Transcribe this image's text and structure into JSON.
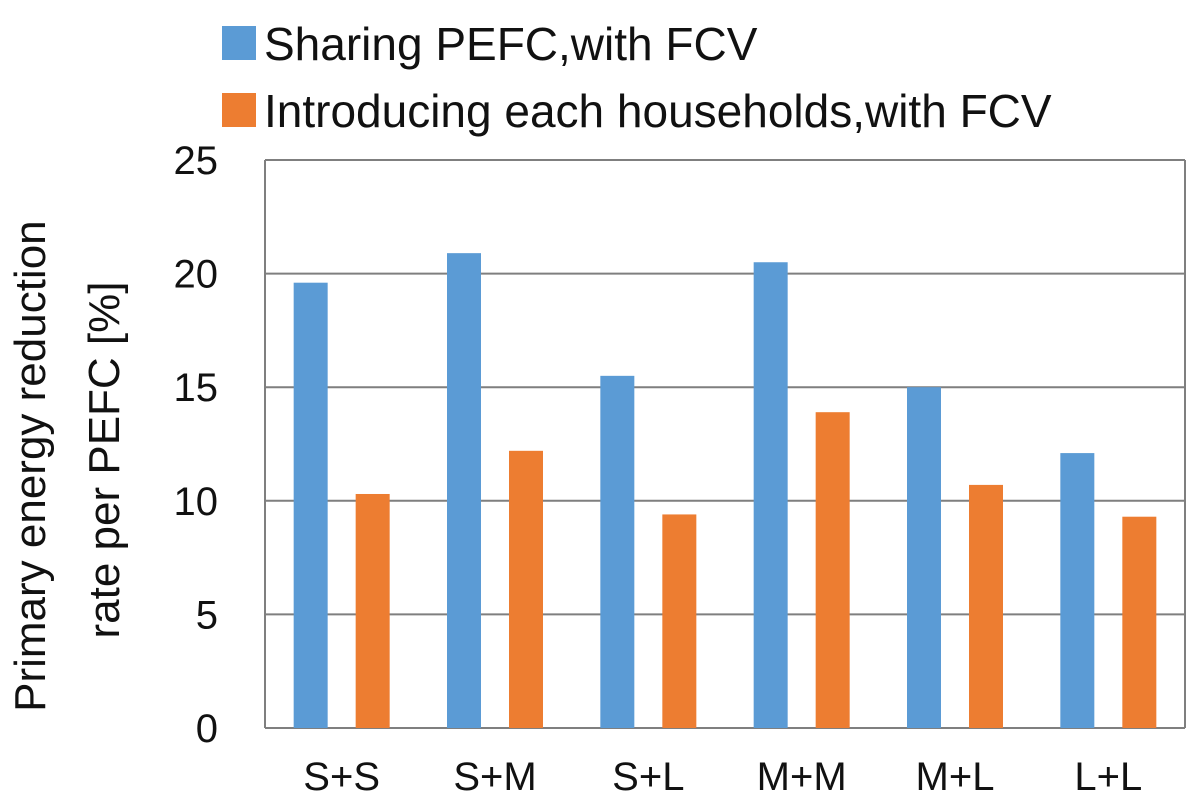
{
  "chart_data": {
    "type": "bar",
    "title": "",
    "xlabel": "",
    "ylabel_lines": [
      "Primary energy reduction",
      "rate per PEFC [%]"
    ],
    "categories": [
      "S+S",
      "S+M",
      "S+L",
      "M+M",
      "M+L",
      "L+L"
    ],
    "series": [
      {
        "name": "Sharing PEFC,with FCV",
        "color": "#5B9BD5",
        "values": [
          19.6,
          20.9,
          15.5,
          20.5,
          15.0,
          12.1
        ]
      },
      {
        "name": "Introducing each households,with FCV",
        "color": "#ED7D31",
        "values": [
          10.3,
          12.2,
          9.4,
          13.9,
          10.7,
          9.3
        ]
      }
    ],
    "ylim": [
      0,
      25
    ],
    "yticks": [
      0,
      5,
      10,
      15,
      20,
      25
    ],
    "grid": true,
    "legend_position": "top"
  }
}
